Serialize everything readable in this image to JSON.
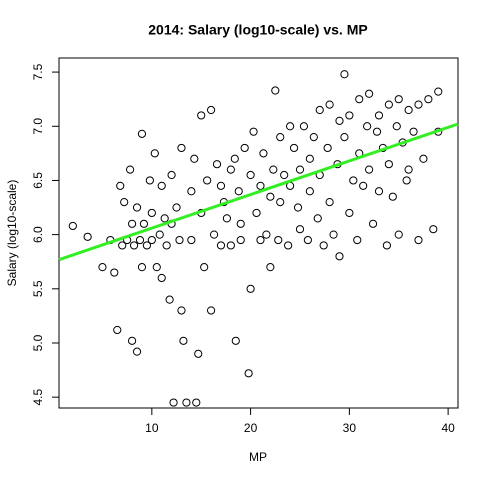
{
  "chart_data": {
    "type": "scatter",
    "title": "2014: Salary (log10-scale) vs. MP",
    "x_label": "MP",
    "y_label": "Salary (log10-scale)",
    "xlim": [
      0.6,
      41.0
    ],
    "ylim": [
      4.4,
      7.63
    ],
    "xticks": [
      10,
      20,
      30,
      40
    ],
    "yticks": [
      4.5,
      {
        "value": 5,
        "label": "5.0"
      },
      5.5,
      {
        "value": 6,
        "label": "6.0"
      },
      6.5,
      {
        "value": 7,
        "label": "7.0"
      },
      7.5
    ],
    "series": [
      {
        "color": "#000000",
        "x": [
          2,
          3.5,
          5,
          5.8,
          6.2,
          6.5,
          6.8,
          7,
          7.2,
          7.5,
          7.8,
          8,
          8,
          8.2,
          8.5,
          8.5,
          8.8,
          9,
          9,
          9.2,
          9.5,
          9.8,
          10,
          10,
          10.3,
          10.5,
          10.8,
          11,
          11,
          11.3,
          11.5,
          11.8,
          12,
          12,
          12.2,
          12.5,
          12.8,
          13,
          13,
          13.2,
          13.5,
          14,
          14,
          14.3,
          14.5,
          14.7,
          15,
          15,
          15.3,
          15.6,
          16,
          16,
          16.3,
          16.6,
          17,
          17,
          17.3,
          17.6,
          18,
          18,
          18.4,
          18.5,
          18.8,
          19,
          19,
          19.4,
          19.8,
          20,
          20,
          20.3,
          20.6,
          21,
          21,
          21.3,
          21.6,
          22,
          22,
          22.3,
          22.5,
          22.8,
          23,
          23,
          23.4,
          23.8,
          24,
          24,
          24.4,
          24.8,
          25,
          25,
          25.4,
          25.8,
          26,
          26,
          26.4,
          26.8,
          27,
          27,
          27.4,
          27.8,
          28,
          28,
          28.4,
          28.8,
          29,
          29,
          29.5,
          29.5,
          30,
          30,
          30.4,
          30.8,
          31,
          31,
          31.4,
          31.8,
          32,
          32,
          32.4,
          32.8,
          33,
          33,
          33.4,
          33.8,
          34,
          34,
          34.4,
          34.8,
          35,
          35,
          35.4,
          35.8,
          36,
          36,
          36.5,
          37,
          37,
          37.5,
          38,
          38.5,
          39,
          39
        ],
        "values": [
          6.08,
          5.98,
          5.7,
          5.95,
          5.65,
          5.12,
          6.45,
          5.9,
          6.3,
          5.95,
          6.6,
          5.02,
          6.1,
          5.9,
          4.92,
          6.25,
          5.95,
          6.93,
          5.7,
          6.1,
          5.9,
          6.5,
          6.2,
          5.95,
          6.75,
          5.7,
          6.0,
          5.6,
          6.45,
          6.15,
          5.9,
          5.4,
          6.55,
          6.1,
          4.45,
          6.25,
          5.95,
          5.3,
          6.8,
          5.02,
          4.45,
          6.4,
          5.95,
          6.7,
          4.45,
          4.9,
          7.1,
          6.2,
          5.7,
          6.5,
          5.3,
          7.15,
          6.0,
          6.65,
          5.9,
          6.45,
          6.3,
          6.15,
          6.6,
          5.9,
          6.7,
          5.02,
          6.4,
          6.1,
          5.95,
          6.8,
          4.72,
          5.5,
          6.55,
          6.95,
          6.2,
          5.95,
          6.45,
          6.75,
          6.0,
          5.7,
          6.35,
          6.6,
          7.33,
          5.95,
          6.9,
          6.3,
          6.55,
          5.9,
          7.0,
          6.45,
          6.8,
          6.25,
          6.05,
          6.6,
          7.0,
          5.95,
          6.7,
          6.4,
          6.9,
          6.15,
          7.15,
          6.55,
          5.9,
          6.8,
          7.2,
          6.3,
          6.0,
          6.65,
          5.8,
          7.05,
          7.48,
          6.9,
          6.2,
          7.1,
          6.5,
          5.95,
          7.25,
          6.75,
          6.45,
          7.0,
          7.3,
          6.6,
          6.1,
          6.95,
          7.1,
          6.4,
          6.8,
          5.9,
          7.2,
          6.65,
          6.35,
          7.0,
          6.0,
          7.25,
          6.85,
          6.5,
          7.15,
          6.6,
          6.95,
          5.95,
          7.2,
          6.7,
          7.25,
          6.05,
          7.32,
          6.95
        ]
      }
    ],
    "fit": {
      "intercept": 5.75,
      "slope": 0.031,
      "color": "#33ee22"
    }
  }
}
